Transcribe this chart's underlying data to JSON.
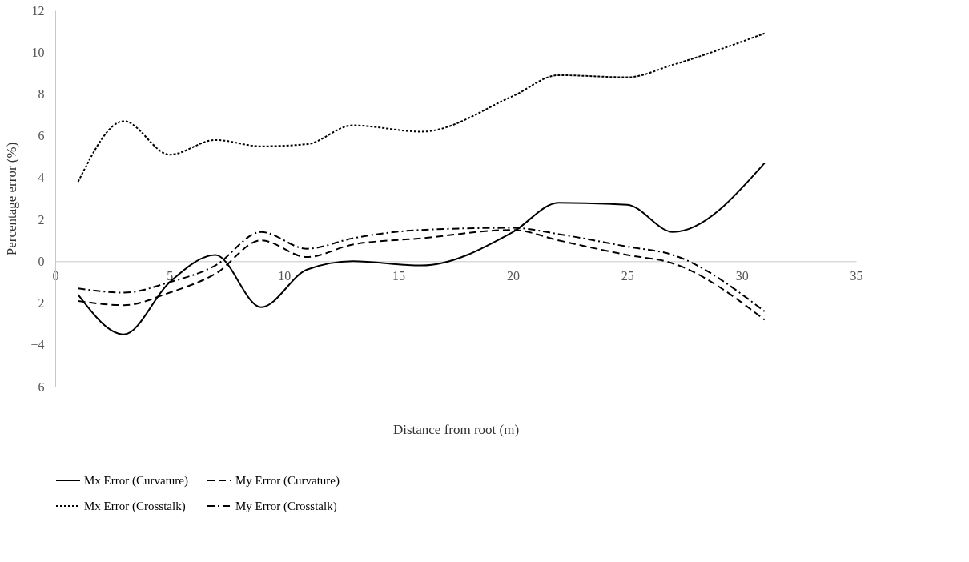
{
  "chart_data": {
    "type": "line",
    "xlabel": "Distance from root (m)",
    "ylabel": "Percentage error (%)",
    "x": [
      1,
      3,
      5,
      7,
      9,
      11,
      13,
      16,
      20,
      22,
      25,
      27,
      31
    ],
    "series": [
      {
        "name": "Mx Error (Curvature)",
        "color": "#000000",
        "line_style": "solid",
        "values": [
          -1.6,
          -3.5,
          -1.0,
          0.3,
          -2.2,
          -0.4,
          0.0,
          -0.2,
          1.4,
          2.8,
          2.7,
          1.4,
          4.7
        ]
      },
      {
        "name": "My Error (Curvature)",
        "color": "#000000",
        "line_style": "dashed",
        "values": [
          -1.9,
          -2.1,
          -1.5,
          -0.6,
          1.0,
          0.2,
          0.8,
          1.1,
          1.5,
          1.0,
          0.3,
          -0.1,
          -2.8
        ]
      },
      {
        "name": "Mx Error (Crosstalk)",
        "color": "#000000",
        "line_style": "dotted",
        "values": [
          3.8,
          6.7,
          5.1,
          5.8,
          5.5,
          5.6,
          6.5,
          6.2,
          7.9,
          8.9,
          8.8,
          9.4,
          10.9
        ]
      },
      {
        "name": "My Error (Crosstalk)",
        "color": "#000000",
        "line_style": "dashdot",
        "values": [
          -1.3,
          -1.5,
          -1.0,
          -0.2,
          1.4,
          0.6,
          1.1,
          1.5,
          1.6,
          1.3,
          0.7,
          0.3,
          -2.4
        ]
      }
    ],
    "xlim": [
      0,
      35
    ],
    "xticks": [
      0,
      5,
      10,
      15,
      20,
      25,
      30,
      35
    ],
    "ylim": [
      -6,
      12
    ],
    "yticks": [
      -6,
      -4,
      -2,
      0,
      2,
      4,
      6,
      8,
      10,
      12
    ],
    "grid": false,
    "legend": "bottom"
  }
}
